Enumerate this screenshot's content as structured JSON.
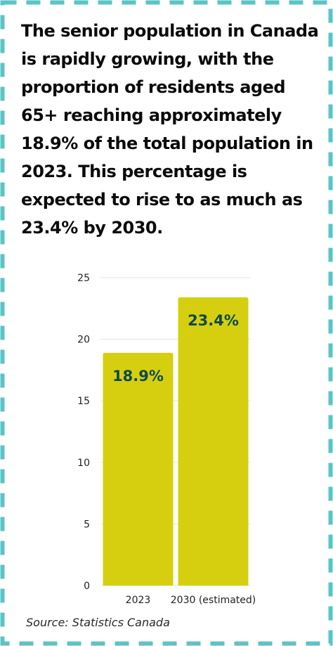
{
  "headline": {
    "parts": [
      {
        "text": "The senior population in Canada is rapidly growing, with the proportion of residents aged 65+ reaching approximately ",
        "bold": false
      },
      {
        "text": "18.9%",
        "bold": true
      },
      {
        "text": " of the total population in ",
        "bold": false
      },
      {
        "text": "2023",
        "bold": true
      },
      {
        "text": ". This percentage is expected to rise to as much as ",
        "bold": false
      },
      {
        "text": "23.4%",
        "bold": true
      },
      {
        "text": " by ",
        "bold": false
      },
      {
        "text": "2030",
        "bold": true
      },
      {
        "text": ".",
        "bold": false
      }
    ]
  },
  "source": "Source: Statistics Canada",
  "colors": {
    "frame_dash": "#5cc3c6",
    "bar_fill": "#d6cf10",
    "data_label": "#0d4a4a",
    "gridline": "#e6e6e6"
  },
  "chart_data": {
    "type": "bar",
    "categories": [
      "2023",
      "2030 (estimated)"
    ],
    "values": [
      18.9,
      23.4
    ],
    "data_labels": [
      "18.9%",
      "23.4%"
    ],
    "yticks": [
      "0",
      "5",
      "10",
      "15",
      "20",
      "25"
    ],
    "ylim": [
      0,
      25
    ],
    "grid": true,
    "title": "",
    "xlabel": "",
    "ylabel": ""
  }
}
